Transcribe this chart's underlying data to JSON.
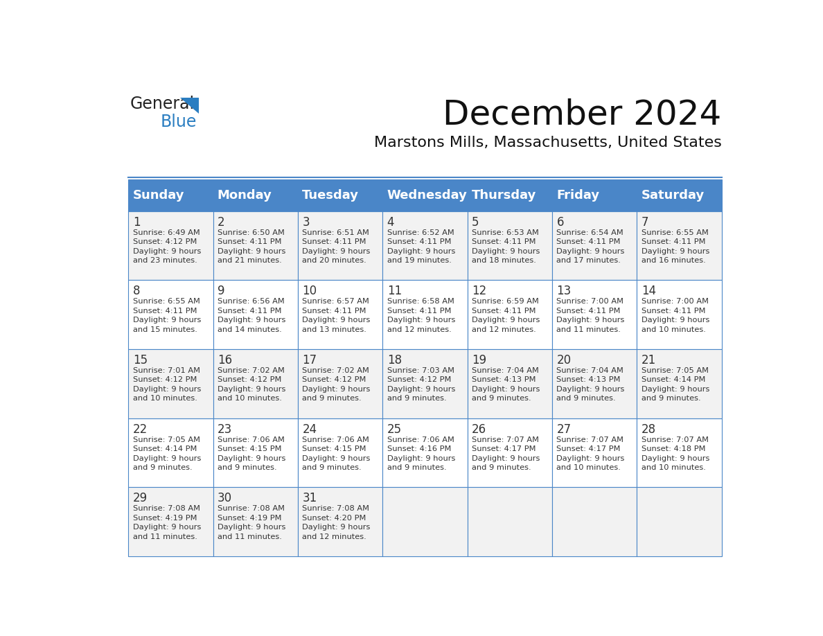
{
  "title": "December 2024",
  "subtitle": "Marstons Mills, Massachusetts, United States",
  "header_bg_color": "#4a86c8",
  "header_text_color": "#ffffff",
  "cell_bg_color_odd": "#f2f2f2",
  "cell_bg_color_even": "#ffffff",
  "border_color": "#4a86c8",
  "text_color": "#333333",
  "days_of_week": [
    "Sunday",
    "Monday",
    "Tuesday",
    "Wednesday",
    "Thursday",
    "Friday",
    "Saturday"
  ],
  "weeks": [
    [
      {
        "day": 1,
        "sunrise": "6:49 AM",
        "sunset": "4:12 PM",
        "daylight": "9 hours and 23 minutes."
      },
      {
        "day": 2,
        "sunrise": "6:50 AM",
        "sunset": "4:11 PM",
        "daylight": "9 hours and 21 minutes."
      },
      {
        "day": 3,
        "sunrise": "6:51 AM",
        "sunset": "4:11 PM",
        "daylight": "9 hours and 20 minutes."
      },
      {
        "day": 4,
        "sunrise": "6:52 AM",
        "sunset": "4:11 PM",
        "daylight": "9 hours and 19 minutes."
      },
      {
        "day": 5,
        "sunrise": "6:53 AM",
        "sunset": "4:11 PM",
        "daylight": "9 hours and 18 minutes."
      },
      {
        "day": 6,
        "sunrise": "6:54 AM",
        "sunset": "4:11 PM",
        "daylight": "9 hours and 17 minutes."
      },
      {
        "day": 7,
        "sunrise": "6:55 AM",
        "sunset": "4:11 PM",
        "daylight": "9 hours and 16 minutes."
      }
    ],
    [
      {
        "day": 8,
        "sunrise": "6:55 AM",
        "sunset": "4:11 PM",
        "daylight": "9 hours and 15 minutes."
      },
      {
        "day": 9,
        "sunrise": "6:56 AM",
        "sunset": "4:11 PM",
        "daylight": "9 hours and 14 minutes."
      },
      {
        "day": 10,
        "sunrise": "6:57 AM",
        "sunset": "4:11 PM",
        "daylight": "9 hours and 13 minutes."
      },
      {
        "day": 11,
        "sunrise": "6:58 AM",
        "sunset": "4:11 PM",
        "daylight": "9 hours and 12 minutes."
      },
      {
        "day": 12,
        "sunrise": "6:59 AM",
        "sunset": "4:11 PM",
        "daylight": "9 hours and 12 minutes."
      },
      {
        "day": 13,
        "sunrise": "7:00 AM",
        "sunset": "4:11 PM",
        "daylight": "9 hours and 11 minutes."
      },
      {
        "day": 14,
        "sunrise": "7:00 AM",
        "sunset": "4:11 PM",
        "daylight": "9 hours and 10 minutes."
      }
    ],
    [
      {
        "day": 15,
        "sunrise": "7:01 AM",
        "sunset": "4:12 PM",
        "daylight": "9 hours and 10 minutes."
      },
      {
        "day": 16,
        "sunrise": "7:02 AM",
        "sunset": "4:12 PM",
        "daylight": "9 hours and 10 minutes."
      },
      {
        "day": 17,
        "sunrise": "7:02 AM",
        "sunset": "4:12 PM",
        "daylight": "9 hours and 9 minutes."
      },
      {
        "day": 18,
        "sunrise": "7:03 AM",
        "sunset": "4:12 PM",
        "daylight": "9 hours and 9 minutes."
      },
      {
        "day": 19,
        "sunrise": "7:04 AM",
        "sunset": "4:13 PM",
        "daylight": "9 hours and 9 minutes."
      },
      {
        "day": 20,
        "sunrise": "7:04 AM",
        "sunset": "4:13 PM",
        "daylight": "9 hours and 9 minutes."
      },
      {
        "day": 21,
        "sunrise": "7:05 AM",
        "sunset": "4:14 PM",
        "daylight": "9 hours and 9 minutes."
      }
    ],
    [
      {
        "day": 22,
        "sunrise": "7:05 AM",
        "sunset": "4:14 PM",
        "daylight": "9 hours and 9 minutes."
      },
      {
        "day": 23,
        "sunrise": "7:06 AM",
        "sunset": "4:15 PM",
        "daylight": "9 hours and 9 minutes."
      },
      {
        "day": 24,
        "sunrise": "7:06 AM",
        "sunset": "4:15 PM",
        "daylight": "9 hours and 9 minutes."
      },
      {
        "day": 25,
        "sunrise": "7:06 AM",
        "sunset": "4:16 PM",
        "daylight": "9 hours and 9 minutes."
      },
      {
        "day": 26,
        "sunrise": "7:07 AM",
        "sunset": "4:17 PM",
        "daylight": "9 hours and 9 minutes."
      },
      {
        "day": 27,
        "sunrise": "7:07 AM",
        "sunset": "4:17 PM",
        "daylight": "9 hours and 10 minutes."
      },
      {
        "day": 28,
        "sunrise": "7:07 AM",
        "sunset": "4:18 PM",
        "daylight": "9 hours and 10 minutes."
      }
    ],
    [
      {
        "day": 29,
        "sunrise": "7:08 AM",
        "sunset": "4:19 PM",
        "daylight": "9 hours and 11 minutes."
      },
      {
        "day": 30,
        "sunrise": "7:08 AM",
        "sunset": "4:19 PM",
        "daylight": "9 hours and 11 minutes."
      },
      {
        "day": 31,
        "sunrise": "7:08 AM",
        "sunset": "4:20 PM",
        "daylight": "9 hours and 12 minutes."
      },
      null,
      null,
      null,
      null
    ]
  ]
}
